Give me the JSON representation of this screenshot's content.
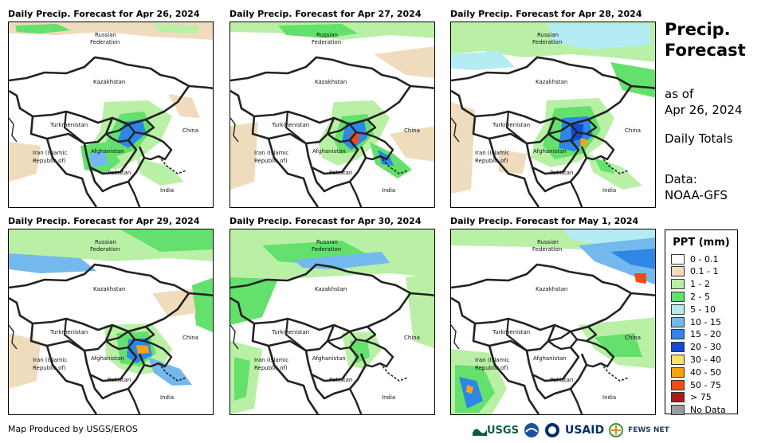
{
  "panels": [
    {
      "title": "Daily Precip. Forecast for Apr 26, 2024"
    },
    {
      "title": "Daily Precip. Forecast for Apr 27, 2024"
    },
    {
      "title": "Daily Precip. Forecast for Apr 28, 2024"
    },
    {
      "title": "Daily Precip. Forecast for Apr 29, 2024"
    },
    {
      "title": "Daily Precip. Forecast for Apr 30, 2024"
    },
    {
      "title": "Daily Precip. Forecast for May 1, 2024"
    }
  ],
  "map_labels": {
    "russia_line1": "Russian",
    "russia_line2": "Federation",
    "kazakhstan": "Kazakhstan",
    "turkmenistan": "Turkmenistan",
    "china": "China",
    "iran_line1": "Iran  (Islamic",
    "iran_line2": "Republic of)",
    "afghanistan": "Afghanistan",
    "pakistan": "Pakistan",
    "india": "India"
  },
  "side": {
    "title_line1": "Precip.",
    "title_line2": "Forecast",
    "asof_line1": "as of",
    "asof_line2": "Apr 26, 2024",
    "totals": "Daily Totals",
    "data_line1": "Data:",
    "data_line2": "NOAA-GFS"
  },
  "legend": {
    "title": "PPT (mm)",
    "items": [
      {
        "label": "0 - 0.1",
        "color": "#ffffff"
      },
      {
        "label": "0.1 - 1",
        "color": "#efdcbc"
      },
      {
        "label": "1 - 2",
        "color": "#b9f0a6"
      },
      {
        "label": "2 - 5",
        "color": "#64e06c"
      },
      {
        "label": "5 - 10",
        "color": "#b4ecf4"
      },
      {
        "label": "10 - 15",
        "color": "#74b9ee"
      },
      {
        "label": "15 - 20",
        "color": "#2e86e6"
      },
      {
        "label": "20 - 30",
        "color": "#1248d2"
      },
      {
        "label": "30 - 40",
        "color": "#f7e464"
      },
      {
        "label": "40 - 50",
        "color": "#f7a310"
      },
      {
        "label": "50 - 75",
        "color": "#f24a14"
      },
      {
        "label": "> 75",
        "color": "#a81c18"
      },
      {
        "label": "No Data",
        "color": "#9b9b9b"
      }
    ]
  },
  "credit": "Map Produced by USGS/EROS",
  "logos": {
    "usgs": "USGS",
    "usaid": "USAID",
    "fews": "FEWS NET"
  }
}
